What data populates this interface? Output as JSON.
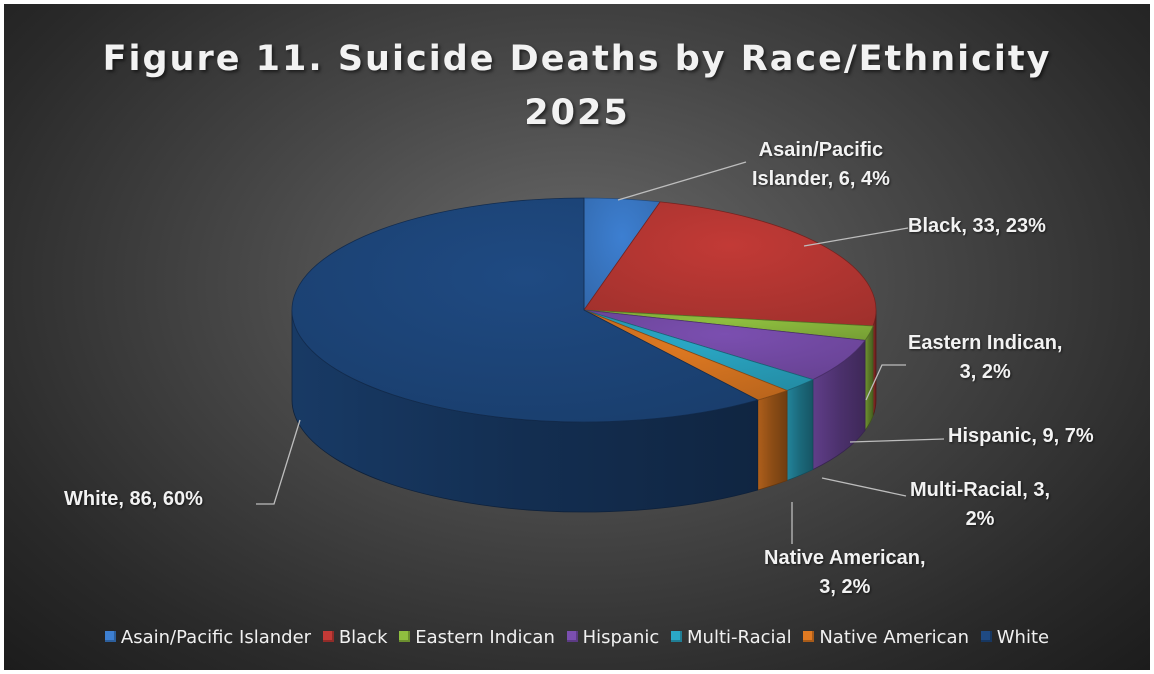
{
  "chart_data": {
    "type": "pie",
    "title_lines": [
      "Figure 11. Suicide Deaths by Race/Ethnicity",
      "2025"
    ],
    "slices": [
      {
        "name": "Asain/Pacific Islander",
        "value": 6,
        "percent": "4%",
        "color": "#3d7fd1",
        "label_lines": [
          "Asain/Pacific",
          "Islander, 6, 4%"
        ]
      },
      {
        "name": "Black",
        "value": 33,
        "percent": "23%",
        "color": "#c23a36",
        "label_lines": [
          "Black, 33, 23%"
        ]
      },
      {
        "name": "Eastern Indican",
        "value": 3,
        "percent": "2%",
        "color": "#8fbf3f",
        "label_lines": [
          "Eastern Indican,",
          "3, 2%"
        ]
      },
      {
        "name": "Hispanic",
        "value": 9,
        "percent": "7%",
        "color": "#7b4fb0",
        "label_lines": [
          "Hispanic, 9, 7%"
        ]
      },
      {
        "name": "Multi-Racial",
        "value": 3,
        "percent": "2%",
        "color": "#2ba9c7",
        "label_lines": [
          "Multi-Racial, 3,",
          "2%"
        ]
      },
      {
        "name": "Native American",
        "value": 3,
        "percent": "2%",
        "color": "#e07a22",
        "label_lines": [
          "Native American,",
          "3, 2%"
        ]
      },
      {
        "name": "White",
        "value": 86,
        "percent": "60%",
        "color": "#1f4a82",
        "label_lines": [
          "White, 86, 60%"
        ]
      }
    ],
    "legend_position": "bottom",
    "style": "3d-pie"
  }
}
